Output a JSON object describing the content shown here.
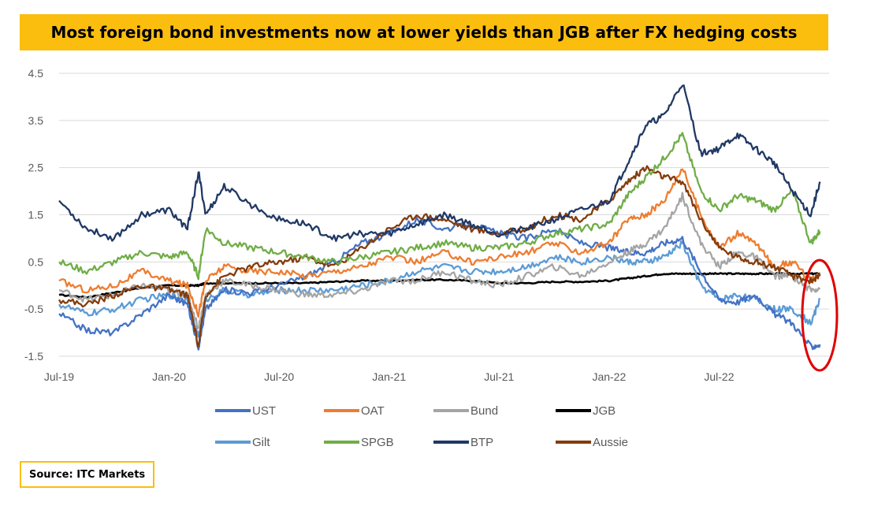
{
  "title": "Most foreign bond investments now at lower yields than JGB after FX hedging costs",
  "source": "Source: ITC Markets",
  "chart_data": {
    "type": "line",
    "title": "Most foreign bond investments now at lower yields than JGB after FX hedging costs",
    "xlabel": "",
    "ylabel": "",
    "ylim": [
      -1.5,
      4.5
    ],
    "y_ticks": [
      "4.5",
      "3.5",
      "2.5",
      "1.5",
      "0.5",
      "-0.5",
      "-1.5"
    ],
    "y_tick_values": [
      4.5,
      3.5,
      2.5,
      1.5,
      0.5,
      -0.5,
      -1.5
    ],
    "x_ticks": [
      "Jul-19",
      "Jan-20",
      "Jul-20",
      "Jan-21",
      "Jul-21",
      "Jan-22",
      "Jul-22"
    ],
    "x_tick_positions_months": [
      0,
      6,
      12,
      18,
      24,
      30,
      36
    ],
    "x_range_months": [
      0,
      42
    ],
    "grid": "horizontal",
    "legend_position": "bottom",
    "highlight": {
      "shape": "ellipse",
      "color": "#e00000",
      "around": "end of series (late 2022)"
    },
    "x_months": [
      0,
      1.5,
      3,
      4.5,
      6,
      7,
      7.6,
      8,
      9,
      10.5,
      12,
      13.5,
      15,
      16.5,
      18,
      19.5,
      21,
      22.5,
      24,
      25.5,
      27,
      28.5,
      30,
      31,
      32,
      33,
      34,
      35,
      36,
      37,
      38,
      39,
      40,
      41,
      41.5
    ],
    "series": [
      {
        "name": "UST",
        "color": "#4472c4",
        "values": [
          -0.6,
          -0.95,
          -1.0,
          -0.6,
          -0.2,
          -0.4,
          -1.3,
          -0.5,
          -0.1,
          -0.15,
          0.0,
          0.2,
          0.5,
          0.9,
          1.1,
          1.4,
          1.2,
          1.3,
          1.1,
          1.0,
          1.2,
          0.9,
          0.8,
          0.7,
          0.7,
          0.9,
          1.0,
          0.3,
          -0.3,
          -0.35,
          -0.2,
          -0.6,
          -0.8,
          -1.3,
          -1.25
        ]
      },
      {
        "name": "OAT",
        "color": "#ed7d31",
        "values": [
          0.1,
          -0.1,
          0.0,
          0.3,
          0.1,
          0.0,
          -0.6,
          0.1,
          0.4,
          0.3,
          0.3,
          0.2,
          0.3,
          0.4,
          0.6,
          0.5,
          0.7,
          0.5,
          0.6,
          0.7,
          0.9,
          0.7,
          0.9,
          1.4,
          1.5,
          1.8,
          2.5,
          1.5,
          0.8,
          1.1,
          0.9,
          0.4,
          0.5,
          0.1,
          0.2
        ]
      },
      {
        "name": "Bund",
        "color": "#a5a5a5",
        "values": [
          -0.1,
          -0.3,
          -0.2,
          0.0,
          -0.1,
          -0.2,
          -0.9,
          -0.2,
          0.1,
          0.0,
          -0.1,
          -0.2,
          -0.2,
          -0.1,
          0.1,
          0.1,
          0.3,
          0.1,
          0.0,
          0.2,
          0.4,
          0.2,
          0.5,
          0.7,
          0.9,
          1.2,
          1.9,
          0.9,
          0.4,
          0.7,
          0.6,
          0.2,
          0.2,
          -0.1,
          -0.05
        ]
      },
      {
        "name": "JGB",
        "color": "#000000",
        "values": [
          -0.2,
          -0.25,
          -0.15,
          -0.05,
          0.0,
          0.0,
          0.0,
          0.05,
          0.05,
          0.05,
          0.05,
          0.05,
          0.08,
          0.1,
          0.1,
          0.12,
          0.12,
          0.1,
          0.05,
          0.05,
          0.08,
          0.08,
          0.1,
          0.15,
          0.2,
          0.25,
          0.25,
          0.25,
          0.25,
          0.25,
          0.25,
          0.25,
          0.25,
          0.25,
          0.25
        ]
      },
      {
        "name": "Gilt",
        "color": "#5b9bd5",
        "values": [
          -0.4,
          -0.6,
          -0.5,
          -0.3,
          -0.2,
          -0.3,
          -1.1,
          -0.3,
          -0.1,
          -0.2,
          -0.1,
          -0.1,
          -0.1,
          0.0,
          0.1,
          0.3,
          0.4,
          0.3,
          0.3,
          0.4,
          0.6,
          0.5,
          0.6,
          0.5,
          0.5,
          0.6,
          0.9,
          0.0,
          -0.3,
          -0.2,
          -0.3,
          -0.5,
          -0.5,
          -0.8,
          -0.3
        ]
      },
      {
        "name": "SPGB",
        "color": "#70ad47",
        "values": [
          0.5,
          0.3,
          0.5,
          0.7,
          0.6,
          0.7,
          0.2,
          1.2,
          0.9,
          0.8,
          0.7,
          0.6,
          0.5,
          0.6,
          0.7,
          0.8,
          0.9,
          0.8,
          0.8,
          0.9,
          1.1,
          1.2,
          1.3,
          1.9,
          2.3,
          2.7,
          3.2,
          2.0,
          1.6,
          1.9,
          1.8,
          1.6,
          2.0,
          0.9,
          1.15
        ]
      },
      {
        "name": "BTP",
        "color": "#203864",
        "values": [
          1.8,
          1.2,
          1.0,
          1.5,
          1.6,
          1.2,
          2.4,
          1.5,
          2.1,
          1.7,
          1.4,
          1.3,
          1.0,
          1.1,
          1.1,
          1.3,
          1.5,
          1.3,
          1.1,
          1.2,
          1.4,
          1.6,
          1.8,
          2.6,
          3.4,
          3.6,
          4.3,
          2.8,
          2.9,
          3.2,
          2.9,
          2.6,
          2.0,
          1.5,
          2.2
        ]
      },
      {
        "name": "Aussie",
        "color": "#843c0c",
        "values": [
          -0.3,
          -0.4,
          -0.2,
          0.0,
          -0.1,
          -0.2,
          -1.3,
          -0.2,
          0.2,
          0.4,
          0.5,
          0.6,
          0.4,
          0.8,
          1.2,
          1.5,
          1.4,
          1.2,
          1.1,
          1.2,
          1.5,
          1.4,
          1.8,
          2.2,
          2.5,
          2.3,
          2.2,
          1.4,
          0.8,
          0.6,
          0.5,
          0.4,
          0.2,
          0.1,
          0.2
        ]
      }
    ]
  }
}
